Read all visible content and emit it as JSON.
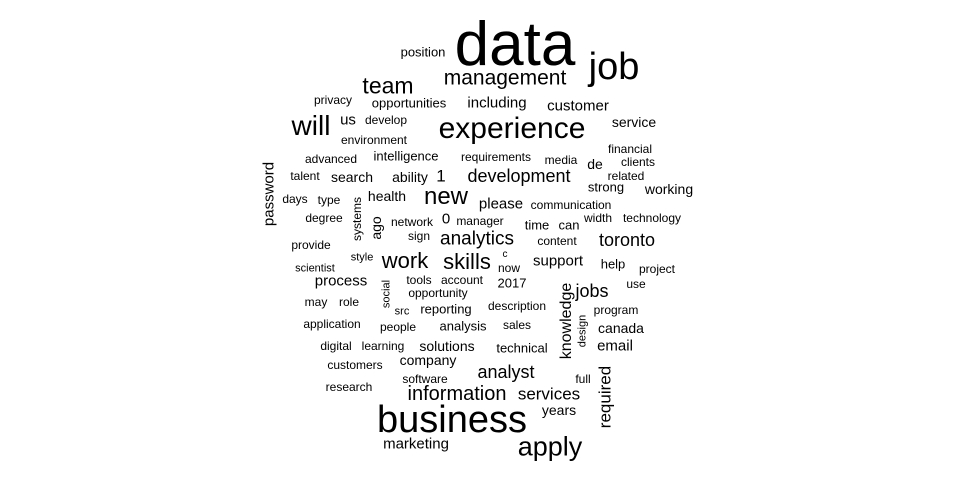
{
  "word_cloud": {
    "color": "#000000",
    "words": [
      {
        "text": "data",
        "weight": 62
      },
      {
        "text": "business",
        "weight": 38
      },
      {
        "text": "experience",
        "weight": 30
      },
      {
        "text": "job",
        "weight": 38
      },
      {
        "text": "apply",
        "weight": 27
      },
      {
        "text": "management",
        "weight": 21
      },
      {
        "text": "team",
        "weight": 23
      },
      {
        "text": "will",
        "weight": 28
      },
      {
        "text": "new",
        "weight": 24
      },
      {
        "text": "work",
        "weight": 22
      },
      {
        "text": "skills",
        "weight": 22
      },
      {
        "text": "information",
        "weight": 20
      },
      {
        "text": "analytics",
        "weight": 19
      },
      {
        "text": "development",
        "weight": 18
      },
      {
        "text": "toronto",
        "weight": 18
      },
      {
        "text": "analyst",
        "weight": 18
      },
      {
        "text": "jobs",
        "weight": 18
      },
      {
        "text": "services",
        "weight": 17
      },
      {
        "text": "required",
        "weight": 17
      },
      {
        "text": "knowledge",
        "weight": 16
      },
      {
        "text": "password",
        "weight": 15
      },
      {
        "text": "including",
        "weight": 15
      },
      {
        "text": "customer",
        "weight": 15
      },
      {
        "text": "please",
        "weight": 15
      },
      {
        "text": "support",
        "weight": 15
      },
      {
        "text": "process",
        "weight": 15
      },
      {
        "text": "email",
        "weight": 15
      },
      {
        "text": "marketing",
        "weight": 15
      },
      {
        "text": "years",
        "weight": 14
      },
      {
        "text": "solutions",
        "weight": 14
      },
      {
        "text": "company",
        "weight": 14
      },
      {
        "text": "canada",
        "weight": 14
      },
      {
        "text": "working",
        "weight": 14
      },
      {
        "text": "service",
        "weight": 14
      },
      {
        "text": "health",
        "weight": 14
      },
      {
        "text": "search",
        "weight": 14
      },
      {
        "text": "ability",
        "weight": 14
      },
      {
        "text": "position",
        "weight": 13
      },
      {
        "text": "opportunities",
        "weight": 13
      },
      {
        "text": "us",
        "weight": 15
      },
      {
        "text": "1",
        "weight": 17
      },
      {
        "text": "0",
        "weight": 15
      },
      {
        "text": "analysis",
        "weight": 13
      },
      {
        "text": "ago",
        "weight": 14
      },
      {
        "text": "help",
        "weight": 13
      },
      {
        "text": "de",
        "weight": 14
      },
      {
        "text": "strong",
        "weight": 13
      },
      {
        "text": "intelligence",
        "weight": 13
      },
      {
        "text": "privacy",
        "weight": 12
      },
      {
        "text": "develop",
        "weight": 12
      },
      {
        "text": "environment",
        "weight": 12
      },
      {
        "text": "advanced",
        "weight": 12
      },
      {
        "text": "talent",
        "weight": 12
      },
      {
        "text": "days",
        "weight": 12
      },
      {
        "text": "type",
        "weight": 12
      },
      {
        "text": "degree",
        "weight": 12
      },
      {
        "text": "provide",
        "weight": 12
      },
      {
        "text": "scientist",
        "weight": 11
      },
      {
        "text": "may",
        "weight": 12
      },
      {
        "text": "role",
        "weight": 12
      },
      {
        "text": "application",
        "weight": 12
      },
      {
        "text": "digital",
        "weight": 12
      },
      {
        "text": "customers",
        "weight": 12
      },
      {
        "text": "research",
        "weight": 12
      },
      {
        "text": "learning",
        "weight": 12
      },
      {
        "text": "people",
        "weight": 12
      },
      {
        "text": "software",
        "weight": 12
      },
      {
        "text": "technical",
        "weight": 13
      },
      {
        "text": "reporting",
        "weight": 13
      },
      {
        "text": "description",
        "weight": 12
      },
      {
        "text": "sales",
        "weight": 12
      },
      {
        "text": "2017",
        "weight": 13
      },
      {
        "text": "now",
        "weight": 12
      },
      {
        "text": "account",
        "weight": 12
      },
      {
        "text": "tools",
        "weight": 12
      },
      {
        "text": "opportunity",
        "weight": 12
      },
      {
        "text": "sign",
        "weight": 12
      },
      {
        "text": "network",
        "weight": 12
      },
      {
        "text": "manager",
        "weight": 12
      },
      {
        "text": "time",
        "weight": 13
      },
      {
        "text": "can",
        "weight": 13
      },
      {
        "text": "content",
        "weight": 12
      },
      {
        "text": "communication",
        "weight": 12
      },
      {
        "text": "width",
        "weight": 12
      },
      {
        "text": "technology",
        "weight": 12
      },
      {
        "text": "requirements",
        "weight": 12
      },
      {
        "text": "media",
        "weight": 12
      },
      {
        "text": "financial",
        "weight": 12
      },
      {
        "text": "clients",
        "weight": 12
      },
      {
        "text": "related",
        "weight": 12
      },
      {
        "text": "project",
        "weight": 12
      },
      {
        "text": "use",
        "weight": 12
      },
      {
        "text": "program",
        "weight": 12
      },
      {
        "text": "full",
        "weight": 12
      },
      {
        "text": "style",
        "weight": 11
      },
      {
        "text": "src",
        "weight": 11
      },
      {
        "text": "systems",
        "weight": 12
      },
      {
        "text": "social",
        "weight": 11
      },
      {
        "text": "design",
        "weight": 11
      },
      {
        "text": "c",
        "weight": 10
      }
    ]
  }
}
